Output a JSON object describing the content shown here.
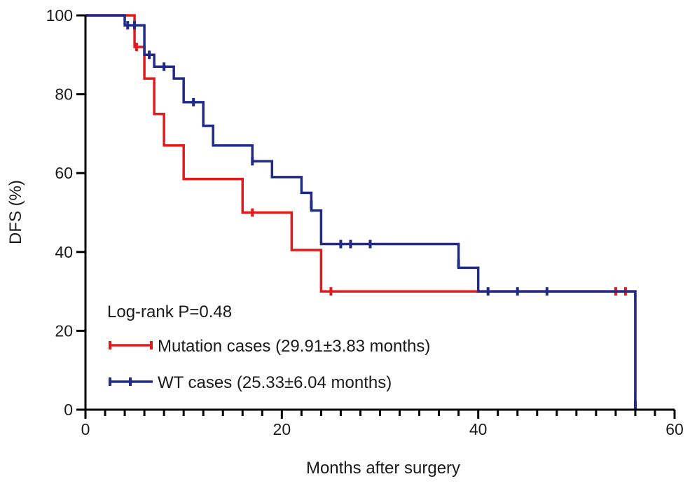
{
  "chart_data": {
    "type": "line",
    "step": true,
    "xlabel": "Months after surgery",
    "ylabel": "DFS (%)",
    "xlim": [
      0,
      60
    ],
    "ylim": [
      0,
      100
    ],
    "x_ticks": [
      0,
      20,
      40,
      60
    ],
    "y_ticks": [
      0,
      20,
      40,
      60,
      80,
      100
    ],
    "x_minor_step": 2,
    "grid": false,
    "annotation": "Log-rank P=0.48",
    "legend_position": "bottom-left",
    "series": [
      {
        "name": "Mutation cases (29.91±3.83 months)",
        "color": "#e31a1c",
        "steps": [
          [
            0,
            100
          ],
          [
            5,
            92
          ],
          [
            6,
            84
          ],
          [
            7,
            75
          ],
          [
            8,
            67
          ],
          [
            10,
            58.5
          ],
          [
            16,
            50
          ],
          [
            21,
            40.5
          ],
          [
            24,
            30
          ],
          [
            56,
            0
          ]
        ],
        "censored": [
          [
            5.2,
            92
          ],
          [
            17,
            50
          ],
          [
            25,
            30
          ],
          [
            54,
            30
          ],
          [
            55,
            30
          ]
        ]
      },
      {
        "name": "WT cases (25.33±6.04 months)",
        "color": "#1f2a8a",
        "steps": [
          [
            0,
            100
          ],
          [
            4,
            97.5
          ],
          [
            6,
            90
          ],
          [
            7,
            87
          ],
          [
            9,
            84
          ],
          [
            10,
            78
          ],
          [
            12,
            72
          ],
          [
            13,
            67
          ],
          [
            17,
            63
          ],
          [
            19,
            59
          ],
          [
            22,
            55
          ],
          [
            23,
            50.5
          ],
          [
            24,
            42
          ],
          [
            38,
            36
          ],
          [
            40,
            30
          ],
          [
            56,
            0
          ]
        ],
        "censored": [
          [
            4.3,
            97.5
          ],
          [
            5,
            97.5
          ],
          [
            6.5,
            90
          ],
          [
            8,
            87
          ],
          [
            11,
            78
          ],
          [
            17,
            63
          ],
          [
            23,
            52
          ],
          [
            26,
            42
          ],
          [
            27,
            42
          ],
          [
            29,
            42
          ],
          [
            38,
            37
          ],
          [
            41,
            30
          ],
          [
            44,
            30
          ],
          [
            47,
            30
          ],
          [
            56,
            1
          ]
        ]
      }
    ]
  }
}
